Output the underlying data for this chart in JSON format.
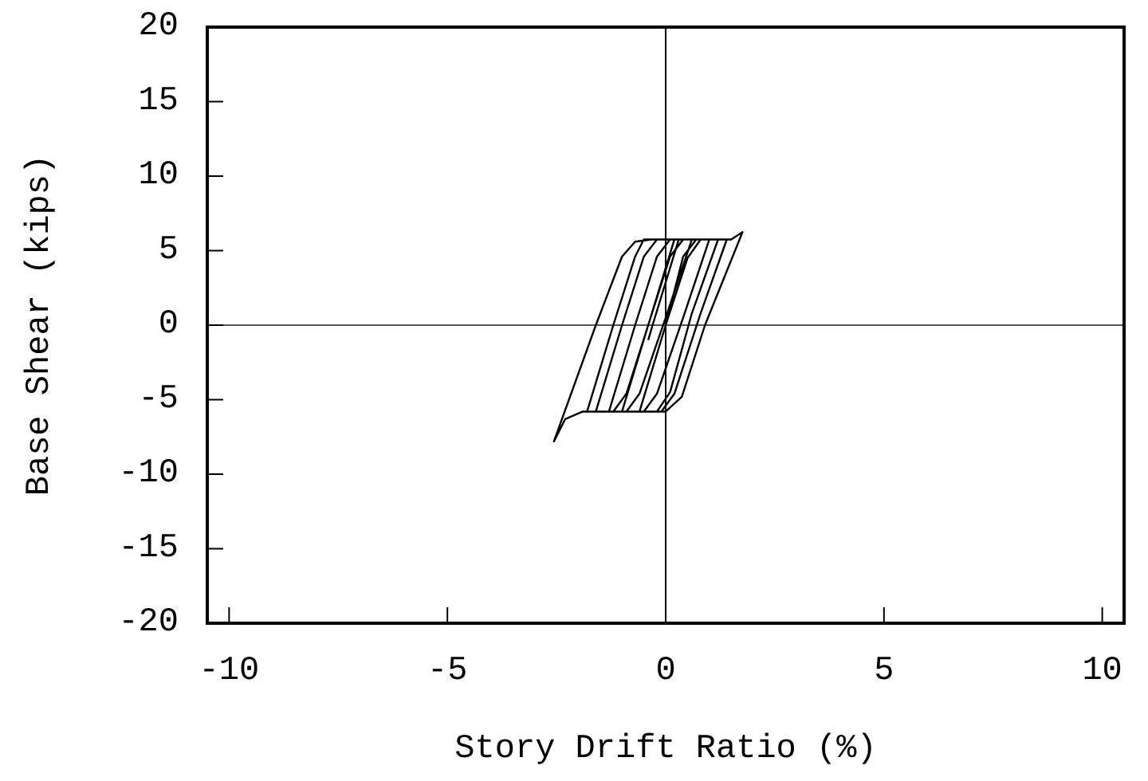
{
  "chart_data": {
    "type": "line",
    "xlabel": "Story Drift Ratio (%)",
    "ylabel": "Base Shear (kips)",
    "xlim": [
      -10.5,
      10.5
    ],
    "ylim": [
      -20,
      20
    ],
    "xticks": [
      -10,
      -5,
      0,
      5,
      10
    ],
    "yticks": [
      -20,
      -15,
      -10,
      -5,
      0,
      5,
      10,
      15,
      20
    ],
    "grid": false,
    "marker": "none",
    "line_style": "solid",
    "ref_lines": [
      {
        "axis": "x",
        "value": 0,
        "color": "#000000"
      },
      {
        "axis": "y",
        "value": 0,
        "color": "#555555"
      }
    ],
    "series": [
      {
        "color": "#000000",
        "x": [
          0,
          0.5,
          0.8,
          1.2,
          0.6,
          0.1,
          -0.2,
          -0.6,
          0,
          0.4,
          0.7,
          1.4,
          0.8,
          0.2,
          -0.1,
          -1.0,
          -0.4,
          0.1,
          0.4,
          1.0,
          0.4,
          -0.2,
          -0.5,
          -1.3,
          -0.7,
          -0.2,
          0.1,
          1.5,
          1.76,
          0.9,
          0.37,
          0.0,
          -1.6,
          -1.0,
          -0.5,
          -0.2,
          0.6,
          0,
          -0.6,
          -0.9,
          -1.9,
          -2.3,
          -2.56,
          -1.6,
          -1.0,
          -0.7,
          -0.33,
          0.2,
          -0.4,
          -0.9,
          -1.2,
          -1.8,
          -1.2,
          -0.7,
          -0.5,
          0.3,
          -0.3,
          -0.4
        ],
        "values": [
          0,
          4.5,
          5.75,
          5.75,
          0.8,
          -4.5,
          -5.8,
          -5.8,
          0,
          4.6,
          5.75,
          5.75,
          0.8,
          -4.6,
          -5.8,
          -5.8,
          0,
          4.6,
          5.75,
          5.75,
          0.5,
          -4.6,
          -5.8,
          -5.8,
          0,
          4.6,
          5.75,
          5.75,
          6.24,
          0,
          -4.8,
          -5.8,
          -5.8,
          0,
          4.6,
          5.75,
          5.75,
          0.5,
          -4.6,
          -5.8,
          -5.8,
          -6.3,
          -7.8,
          0,
          4.6,
          5.6,
          5.75,
          5.75,
          0,
          -4.6,
          -5.8,
          -5.8,
          0,
          4.6,
          5.75,
          5.75,
          0,
          -1
        ]
      }
    ]
  }
}
